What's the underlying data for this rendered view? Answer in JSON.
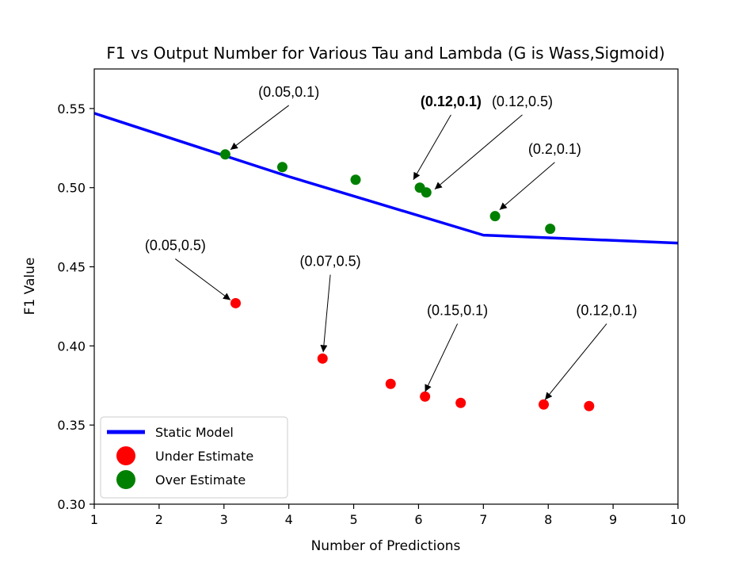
{
  "chart_data": {
    "type": "scatter",
    "title": "F1 vs Output Number for Various Tau and Lambda (G is Wass,Sigmoid)",
    "xlabel": "Number of Predictions",
    "ylabel": "F1 Value",
    "xlim": [
      1,
      10
    ],
    "ylim": [
      0.3,
      0.575
    ],
    "xticks": [
      "1",
      "2",
      "3",
      "4",
      "5",
      "6",
      "7",
      "8",
      "9",
      "10"
    ],
    "yticks": [
      "0.30",
      "0.35",
      "0.40",
      "0.45",
      "0.50",
      "0.55"
    ],
    "grid": false,
    "legend_position": "lower-left",
    "colors": {
      "static": "#0000ff",
      "under": "#ff0000",
      "over": "#008000"
    },
    "series": [
      {
        "name": "Static Model",
        "kind": "line",
        "x": [
          1,
          4,
          7,
          10
        ],
        "y": [
          0.547,
          0.507,
          0.47,
          0.465
        ]
      },
      {
        "name": "Under Estimate",
        "kind": "scatter",
        "x": [
          3.18,
          4.52,
          5.57,
          6.1,
          6.65,
          7.93,
          8.63
        ],
        "y": [
          0.427,
          0.392,
          0.376,
          0.368,
          0.364,
          0.363,
          0.362
        ]
      },
      {
        "name": "Over Estimate",
        "kind": "scatter",
        "x": [
          3.02,
          3.9,
          5.03,
          6.02,
          6.12,
          7.18,
          8.03
        ],
        "y": [
          0.521,
          0.513,
          0.505,
          0.5,
          0.497,
          0.482,
          0.474
        ]
      }
    ],
    "annotations": [
      {
        "text": "(0.05,0.1)",
        "bold": false,
        "x": 4.0,
        "y": 0.556,
        "target_x": 3.1,
        "target_y": 0.524
      },
      {
        "text": "(0.12,0.1)",
        "bold": true,
        "x": 6.5,
        "y": 0.55,
        "target_x": 5.92,
        "target_y": 0.505
      },
      {
        "text": "(0.12,0.5)",
        "bold": false,
        "x": 7.6,
        "y": 0.55,
        "target_x": 6.25,
        "target_y": 0.499
      },
      {
        "text": "(0.2,0.1)",
        "bold": false,
        "x": 8.1,
        "y": 0.52,
        "target_x": 7.25,
        "target_y": 0.486
      },
      {
        "text": "(0.05,0.5)",
        "bold": false,
        "x": 2.25,
        "y": 0.459,
        "target_x": 3.1,
        "target_y": 0.429
      },
      {
        "text": "(0.07,0.5)",
        "bold": false,
        "x": 4.64,
        "y": 0.449,
        "target_x": 4.53,
        "target_y": 0.396
      },
      {
        "text": "(0.15,0.1)",
        "bold": false,
        "x": 6.6,
        "y": 0.418,
        "target_x": 6.1,
        "target_y": 0.371
      },
      {
        "text": "(0.12,0.1)",
        "bold": false,
        "x": 8.9,
        "y": 0.418,
        "target_x": 7.95,
        "target_y": 0.366
      }
    ]
  }
}
